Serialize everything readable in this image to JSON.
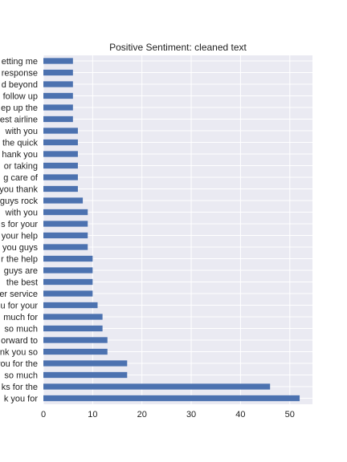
{
  "chart_data": {
    "type": "bar",
    "orientation": "horizontal",
    "title": "Positive Sentiment: cleaned text",
    "xlabel": "",
    "ylabel": "",
    "xlim": [
      0,
      54.6
    ],
    "x_ticks": [
      0,
      10,
      20,
      30,
      40,
      50
    ],
    "grid": true,
    "bar_color": "#4c72b0",
    "plot_background": "#eaeaf2",
    "categories": [
      "thank you for",
      "thanks for the",
      "so much",
      "you for the",
      "thank you so",
      "forward to",
      "so much",
      "much for",
      "you for your",
      "customer service",
      "the best",
      "guys are",
      "for the help",
      "you guys",
      "your help",
      "thanks for your",
      "with you",
      "guys rock",
      "you thank",
      "taking care of",
      "for taking",
      "thank you",
      "the quick",
      "with you",
      "best airline",
      "keep up the",
      "follow up",
      "above and beyond",
      "response",
      "getting me"
    ],
    "category_labels_shown": [
      "k you for",
      "ks for the",
      "so much",
      "you for the",
      "nk you so",
      "orward to",
      "so much",
      "much for",
      "u for your",
      "er service",
      "the best",
      "guys are",
      "r the help",
      "you guys",
      "your help",
      "s for your",
      "with you",
      "guys rock",
      "you thank",
      "g care of",
      "or taking",
      "hank you",
      "the quick",
      "with you",
      "est airline",
      "ep up the",
      "follow up",
      "d beyond",
      "response",
      "etting me"
    ],
    "values": [
      52,
      46,
      17,
      17,
      13,
      13,
      12,
      12,
      11,
      10,
      10,
      10,
      10,
      9,
      9,
      9,
      9,
      8,
      7,
      7,
      7,
      7,
      7,
      7,
      6,
      6,
      6,
      6,
      6,
      6
    ]
  }
}
